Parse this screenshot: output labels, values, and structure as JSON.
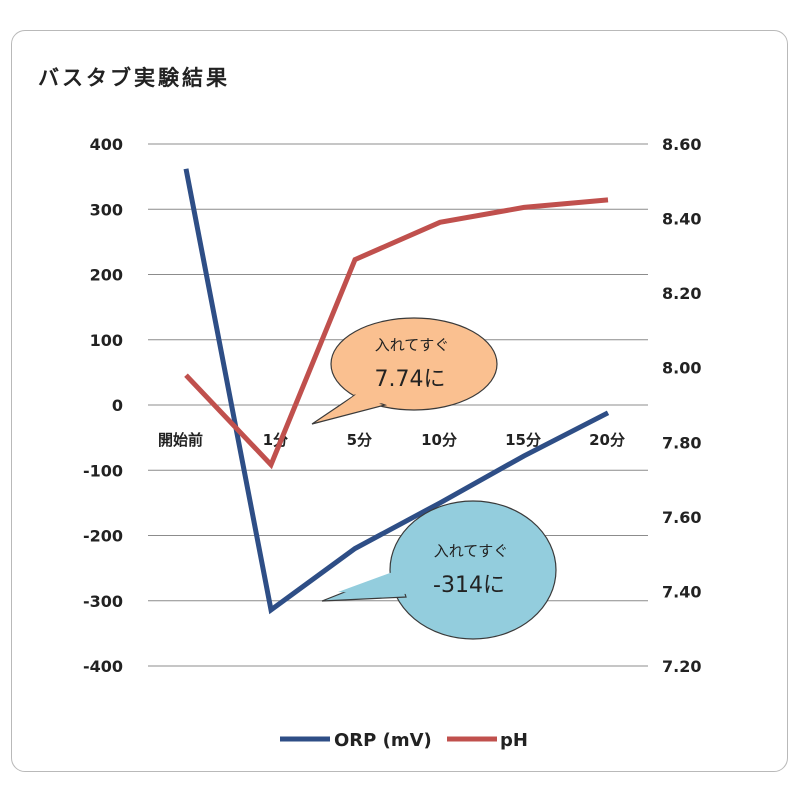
{
  "chart_data": {
    "type": "line",
    "title": "バスタブ実験結果",
    "categories": [
      "開始前",
      "1分",
      "5分",
      "10分",
      "15分",
      "20分"
    ],
    "y_left": {
      "lim": [
        -400,
        400
      ],
      "ticks": [
        "400",
        "300",
        "200",
        "100",
        "0",
        "-100",
        "-200",
        "-300",
        "-400"
      ]
    },
    "y_right": {
      "lim": [
        7.2,
        8.6
      ],
      "ticks": [
        "8.60",
        "8.40",
        "8.20",
        "8.00",
        "7.80",
        "7.60",
        "7.40",
        "7.20"
      ]
    },
    "grid": true,
    "legend_position": "bottom",
    "series": [
      {
        "name": "ORP (mV)",
        "axis": "left",
        "color": "#2e4e86",
        "values": [
          362,
          -314,
          -220,
          -150,
          -78,
          -12
        ]
      },
      {
        "name": "pH",
        "axis": "right",
        "color": "#c0504d",
        "values": [
          7.98,
          7.74,
          8.29,
          8.39,
          8.43,
          8.45
        ]
      }
    ],
    "annotations": [
      {
        "line1": "入れてすぐ",
        "line2": "7.74に",
        "color": "#fac090",
        "series": "pH",
        "category": "1分"
      },
      {
        "line1": "入れてすぐ",
        "line2": "-314に",
        "color": "#93cddd",
        "series": "ORP (mV)",
        "category": "1分"
      }
    ]
  }
}
